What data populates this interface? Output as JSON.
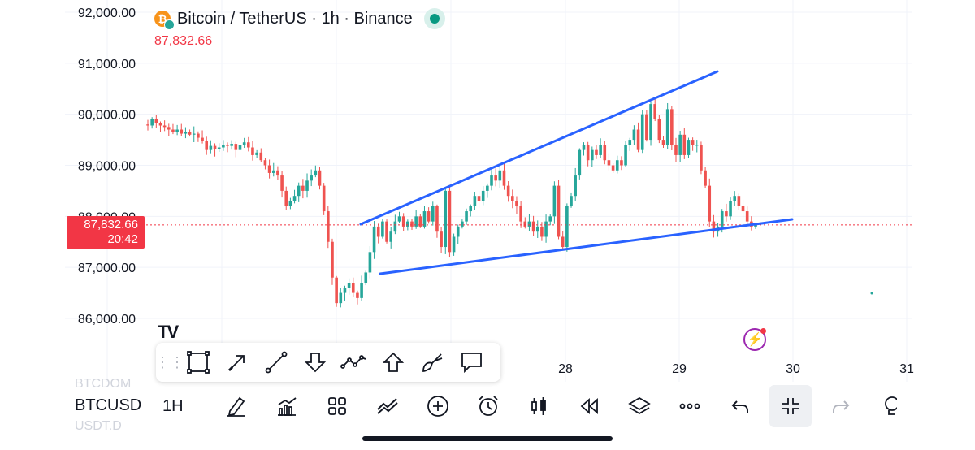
{
  "header": {
    "symbol_title": "Bitcoin / TetherUS · 1h · Binance",
    "last_price": "87,832.66"
  },
  "price_tag": {
    "price": "87,832.66",
    "countdown": "20:42"
  },
  "branding": {
    "logo_text": "TV"
  },
  "draw_toolbar": {
    "tools": [
      "rectangle-icon",
      "arrow-icon",
      "trend-line-icon",
      "arrow-marker-down-icon",
      "path-icon",
      "arrow-marker-up-icon",
      "brush-icon",
      "callout-icon"
    ]
  },
  "bottom_bar": {
    "ghost_top": "BTCDOM",
    "symbol": "BTCUSD",
    "ghost_bottom": "USDT.D",
    "interval": "1H",
    "buttons": [
      "drawing-pen-icon",
      "indicators-icon",
      "templates-icon",
      "compare-icon",
      "add-icon",
      "alert-icon",
      "chart-type-icon",
      "replay-icon",
      "layers-icon",
      "more-icon",
      "undo-icon",
      "exit-fullscreen-icon",
      "redo-icon",
      "idea-icon"
    ]
  },
  "colors": {
    "up": "#26a69a",
    "down": "#ef5350",
    "trendline": "#2962ff",
    "price_line": "#f23645",
    "accent_purple": "#9c27b0"
  },
  "chart_data": {
    "type": "candlestick",
    "title": "Bitcoin / TetherUS · 1h · Binance",
    "y_ticks": [
      "92,000.00",
      "91,000.00",
      "90,000.00",
      "89,000.00",
      "88,000.00",
      "87,000.00",
      "86,000.00"
    ],
    "x_ticks": [
      "28",
      "29",
      "30",
      "31"
    ],
    "ylim": [
      85550,
      92200
    ],
    "last": 87832.66,
    "closes": [
      89780,
      89900,
      89820,
      89780,
      89750,
      89700,
      89650,
      89700,
      89620,
      89650,
      89600,
      89620,
      89540,
      89480,
      89300,
      89380,
      89320,
      89350,
      89400,
      89380,
      89420,
      89300,
      89400,
      89450,
      89350,
      89200,
      89250,
      89100,
      89000,
      88850,
      88900,
      88800,
      88500,
      88200,
      88300,
      88400,
      88600,
      88500,
      88700,
      88800,
      88900,
      88600,
      88100,
      87500,
      86800,
      86300,
      86500,
      86600,
      86700,
      86500,
      86400,
      86700,
      86900,
      87300,
      87800,
      87600,
      87900,
      87500,
      87700,
      87900,
      88000,
      87800,
      87900,
      87800,
      88000,
      87800,
      88100,
      87900,
      88200,
      87700,
      87400,
      88500,
      87300,
      87600,
      87800,
      87900,
      88100,
      88200,
      88400,
      88300,
      88500,
      88600,
      88800,
      88700,
      88900,
      88600,
      88400,
      88300,
      88200,
      87900,
      87800,
      87900,
      87700,
      87800,
      87600,
      87900,
      88000,
      88600,
      87600,
      87400,
      88200,
      88400,
      88800,
      89300,
      89400,
      89100,
      89300,
      89200,
      89400,
      89100,
      89000,
      88900,
      89100,
      89000,
      89400,
      89500,
      89700,
      89300,
      90000,
      89500,
      90200,
      89900,
      89500,
      89400,
      90100,
      89400,
      89200,
      89600,
      89200,
      89500,
      89400,
      89400,
      88900,
      88600,
      87900,
      87700,
      87800,
      88100,
      88000,
      88300,
      88400,
      88200,
      88100,
      87900,
      87800,
      87833
    ]
  }
}
